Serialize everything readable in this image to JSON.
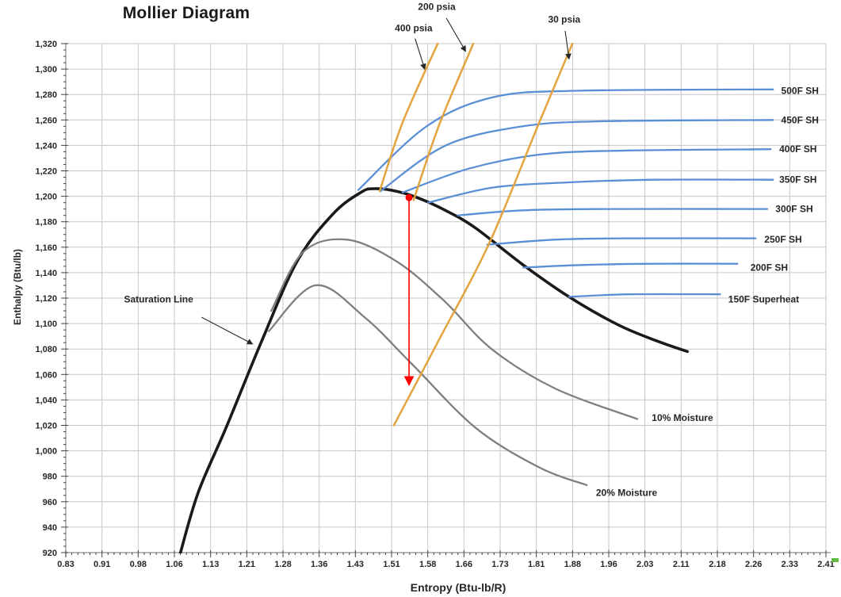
{
  "page": {
    "background": "#FFFFFF"
  },
  "ui": {
    "green_mark_color": "#62BB46"
  },
  "chart_data": {
    "type": "line",
    "title": "Mollier Diagram",
    "xlabel": "Entropy (Btu-lb/R)",
    "ylabel": "Enthalpy (Btu/lb)",
    "xlim": [
      0.83,
      2.41
    ],
    "ylim": [
      920,
      1320
    ],
    "grid": true,
    "legend_position": "none (inline curve labels)",
    "x_tick_labels": [
      "0.83",
      "0.91",
      "0.98",
      "1.06",
      "1.13",
      "1.21",
      "1.28",
      "1.36",
      "1.43",
      "1.51",
      "1.58",
      "1.66",
      "1.73",
      "1.81",
      "1.88",
      "1.96",
      "2.03",
      "2.11",
      "2.18",
      "2.26",
      "2.33",
      "2.41"
    ],
    "y_tick_labels": [
      "920",
      "940",
      "960",
      "980",
      "1,000",
      "1,020",
      "1,040",
      "1,060",
      "1,080",
      "1,100",
      "1,120",
      "1,140",
      "1,160",
      "1,180",
      "1,200",
      "1,220",
      "1,240",
      "1,260",
      "1,280",
      "1,300",
      "1,320"
    ],
    "colors": {
      "saturation": "#1A1A1A",
      "moisture": "#7F7F7F",
      "superheat": "#5B8FD5",
      "pressure": "#E3A33D",
      "process": "#FF0000",
      "grid": "#C6C6C6",
      "axis": "#8C8C8C",
      "tick": "#404040",
      "text": "#262626"
    },
    "series": [
      {
        "name": "saturation-line",
        "role": "saturation",
        "width": 3.6,
        "smooth": true,
        "points": [
          [
            1.067,
            918
          ],
          [
            1.105,
            967
          ],
          [
            1.163,
            1018
          ],
          [
            1.237,
            1086
          ],
          [
            1.311,
            1149
          ],
          [
            1.385,
            1186
          ],
          [
            1.443,
            1203
          ],
          [
            1.471,
            1206
          ],
          [
            1.517,
            1204
          ],
          [
            1.567,
            1198
          ],
          [
            1.624,
            1188
          ],
          [
            1.682,
            1175
          ],
          [
            1.781,
            1146
          ],
          [
            1.876,
            1121
          ],
          [
            1.978,
            1099
          ],
          [
            2.061,
            1086
          ],
          [
            2.122,
            1078
          ]
        ]
      },
      {
        "name": "moisture-10pct",
        "role": "moisture",
        "width": 2.3,
        "smooth": true,
        "label": {
          "text": "10% Moisture",
          "x": 2.048,
          "y": 1026
        },
        "points": [
          [
            1.257,
            1110
          ],
          [
            1.323,
            1156
          ],
          [
            1.413,
            1166
          ],
          [
            1.517,
            1149
          ],
          [
            1.616,
            1118
          ],
          [
            1.715,
            1080
          ],
          [
            1.847,
            1049
          ],
          [
            2.018,
            1025
          ]
        ]
      },
      {
        "name": "moisture-20pct",
        "role": "moisture",
        "width": 2.3,
        "smooth": true,
        "label": {
          "text": "20% Moisture",
          "x": 1.932,
          "y": 967
        },
        "points": [
          [
            1.252,
            1094
          ],
          [
            1.349,
            1130
          ],
          [
            1.451,
            1105
          ],
          [
            1.55,
            1068
          ],
          [
            1.682,
            1018
          ],
          [
            1.814,
            987
          ],
          [
            1.913,
            973
          ]
        ]
      },
      {
        "name": "superheat-500f",
        "role": "superheat",
        "width": 2.3,
        "smooth": true,
        "label": {
          "text": "500F SH",
          "x": 2.317,
          "y": 1283
        },
        "points": [
          [
            1.438,
            1205
          ],
          [
            1.58,
            1255
          ],
          [
            1.72,
            1278
          ],
          [
            1.9,
            1283
          ],
          [
            2.3,
            1284
          ]
        ]
      },
      {
        "name": "superheat-450f",
        "role": "superheat",
        "width": 2.3,
        "smooth": true,
        "label": {
          "text": "450F SH",
          "x": 2.317,
          "y": 1260
        },
        "points": [
          [
            1.484,
            1204
          ],
          [
            1.62,
            1240
          ],
          [
            1.78,
            1255
          ],
          [
            1.95,
            1259
          ],
          [
            2.3,
            1260
          ]
        ]
      },
      {
        "name": "superheat-400f",
        "role": "superheat",
        "width": 2.3,
        "smooth": true,
        "label": {
          "text": "400F SH",
          "x": 2.313,
          "y": 1237
        },
        "points": [
          [
            1.53,
            1203
          ],
          [
            1.67,
            1222
          ],
          [
            1.82,
            1233
          ],
          [
            2.0,
            1236
          ],
          [
            2.295,
            1237
          ]
        ]
      },
      {
        "name": "superheat-350f",
        "role": "superheat",
        "width": 2.3,
        "smooth": true,
        "label": {
          "text": "350F SH",
          "x": 2.313,
          "y": 1213
        },
        "points": [
          [
            1.583,
            1195
          ],
          [
            1.72,
            1207
          ],
          [
            1.88,
            1211
          ],
          [
            2.05,
            1213
          ],
          [
            2.3,
            1213
          ]
        ]
      },
      {
        "name": "superheat-300f",
        "role": "superheat",
        "width": 2.3,
        "smooth": true,
        "label": {
          "text": "300F SH",
          "x": 2.305,
          "y": 1190
        },
        "points": [
          [
            1.645,
            1185
          ],
          [
            1.78,
            1189
          ],
          [
            1.95,
            1190
          ],
          [
            2.288,
            1190
          ]
        ]
      },
      {
        "name": "superheat-250f",
        "role": "superheat",
        "width": 2.3,
        "smooth": true,
        "label": {
          "text": "250F SH",
          "x": 2.282,
          "y": 1166
        },
        "points": [
          [
            1.706,
            1162
          ],
          [
            1.85,
            1166
          ],
          [
            2.0,
            1167
          ],
          [
            2.264,
            1167
          ]
        ]
      },
      {
        "name": "superheat-200f",
        "role": "superheat",
        "width": 2.3,
        "smooth": true,
        "label": {
          "text": "200F SH",
          "x": 2.253,
          "y": 1144
        },
        "points": [
          [
            1.781,
            1144
          ],
          [
            1.9,
            1146
          ],
          [
            2.05,
            1147
          ],
          [
            2.226,
            1147
          ]
        ]
      },
      {
        "name": "superheat-150f",
        "role": "superheat",
        "width": 2.3,
        "smooth": true,
        "label": {
          "text": "150F Superheat",
          "x": 2.207,
          "y": 1119
        },
        "points": [
          [
            1.876,
            1121
          ],
          [
            2.0,
            1123
          ],
          [
            2.19,
            1123
          ]
        ]
      },
      {
        "name": "isobar-400psia",
        "role": "pressure",
        "width": 2.5,
        "smooth": true,
        "points": [
          [
            1.4825,
            1204
          ],
          [
            1.53,
            1258
          ],
          [
            1.603,
            1320
          ]
        ]
      },
      {
        "name": "isobar-200psia",
        "role": "pressure",
        "width": 2.5,
        "smooth": true,
        "points": [
          [
            1.553,
            1197
          ],
          [
            1.605,
            1255
          ],
          [
            1.677,
            1320
          ]
        ]
      },
      {
        "name": "isobar-30psia",
        "role": "pressure",
        "width": 2.5,
        "smooth": true,
        "points": [
          [
            1.512,
            1020
          ],
          [
            1.604,
            1086
          ],
          [
            1.71,
            1163
          ],
          [
            1.814,
            1258
          ],
          [
            1.883,
            1320
          ]
        ]
      }
    ],
    "process_arrow": {
      "name": "expansion-drop-arrow",
      "from": [
        1.5435,
        1199
      ],
      "to": [
        1.5435,
        1052
      ]
    },
    "annotations": [
      {
        "text": "Saturation Line",
        "x": 1.023,
        "y": 1119,
        "arrow": {
          "x1": 1.112,
          "y1": 1105,
          "x2": 1.218,
          "y2": 1084
        }
      },
      {
        "text": "400 psia",
        "x": 1.553,
        "y": 1332,
        "arrow": {
          "x1": 1.556,
          "y1": 1324,
          "x2": 1.576,
          "y2": 1300
        }
      },
      {
        "text": "200 psia",
        "x": 1.601,
        "y": 1349,
        "arrow": {
          "x1": 1.621,
          "y1": 1340,
          "x2": 1.661,
          "y2": 1314
        }
      },
      {
        "text": "30 psia",
        "x": 1.866,
        "y": 1339,
        "arrow": {
          "x1": 1.868,
          "y1": 1330,
          "x2": 1.876,
          "y2": 1308
        }
      }
    ]
  }
}
